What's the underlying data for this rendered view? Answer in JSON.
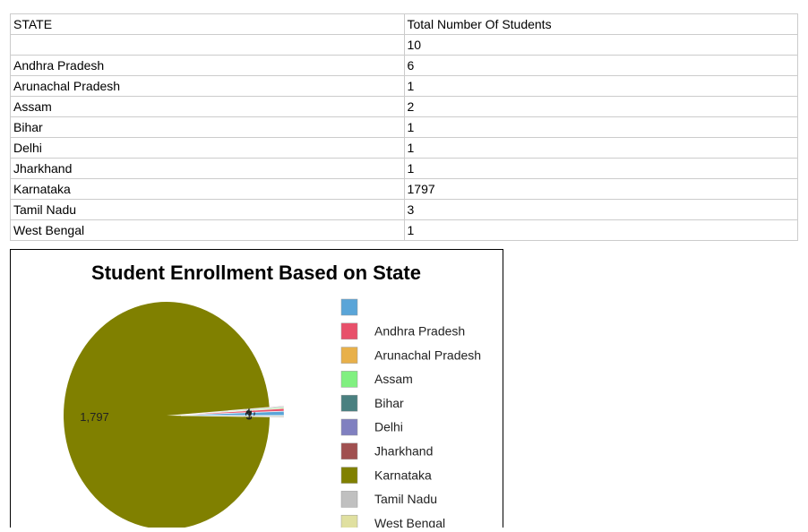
{
  "table": {
    "header": [
      "STATE",
      "Total Number Of Students"
    ],
    "rows": [
      [
        null,
        10
      ],
      [
        "Andhra Pradesh",
        6
      ],
      [
        "Arunachal Pradesh",
        1
      ],
      [
        "Assam",
        2
      ],
      [
        "Bihar",
        1
      ],
      [
        "Delhi",
        1
      ],
      [
        "Jharkhand",
        1
      ],
      [
        "Karnataka",
        1797
      ],
      [
        "Tamil Nadu",
        3
      ],
      [
        "West Bengal",
        1
      ]
    ]
  },
  "chart_data": {
    "type": "pie",
    "title": "Student Enrollment Based on State",
    "categories": [
      null,
      "Andhra Pradesh",
      "Arunachal Pradesh",
      "Assam",
      "Bihar",
      "Delhi",
      "Jharkhand",
      "Karnataka",
      "Tamil Nadu",
      "West Bengal"
    ],
    "values": [
      10,
      6,
      1,
      2,
      1,
      1,
      1,
      1797,
      3,
      1
    ],
    "value_labels": [
      null,
      null,
      null,
      null,
      null,
      null,
      null,
      "1,797",
      null,
      null
    ],
    "colors": [
      "#5aa5d8",
      "#e8506a",
      "#e8b04a",
      "#80f080",
      "#4a8080",
      "#8080c0",
      "#a05050",
      "#808000",
      "#c0c0c0",
      "#e0e0a0"
    ]
  }
}
